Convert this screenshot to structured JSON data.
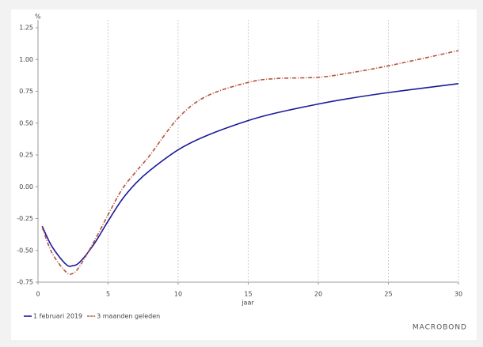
{
  "chart_data": {
    "type": "line",
    "y_label": "%",
    "x_label": "jaar",
    "watermark": "MACROBOND",
    "x": [
      0.3,
      1,
      2,
      2.5,
      3,
      4,
      5,
      6,
      7,
      8,
      10,
      12,
      15,
      17,
      20,
      22,
      25,
      30
    ],
    "series": [
      {
        "name": "1 februari 2019",
        "color": "#1a1a9c",
        "dashed": false,
        "values": [
          -0.31,
          -0.47,
          -0.61,
          -0.62,
          -0.59,
          -0.45,
          -0.27,
          -0.1,
          0.03,
          0.13,
          0.29,
          0.4,
          0.52,
          0.58,
          0.65,
          0.69,
          0.74,
          0.81
        ]
      },
      {
        "name": "3 maanden geleden",
        "color": "#b5533c",
        "dashed": true,
        "values": [
          -0.32,
          -0.52,
          -0.67,
          -0.68,
          -0.62,
          -0.43,
          -0.22,
          -0.02,
          0.12,
          0.25,
          0.54,
          0.71,
          0.82,
          0.85,
          0.86,
          0.89,
          0.95,
          1.07
        ]
      }
    ],
    "xlim": [
      0,
      30
    ],
    "xticks": [
      0,
      5,
      10,
      15,
      20,
      25,
      30
    ],
    "ylim": [
      -0.75,
      1.25
    ],
    "yticks": [
      1.25,
      {
        "value": 1,
        "label": "1.00"
      },
      0.75,
      {
        "value": 0.5,
        "label": "0.50"
      },
      0.25,
      {
        "value": 0,
        "label": "0.00"
      },
      -0.25,
      {
        "value": -0.5,
        "label": "-0.50"
      },
      -0.75
    ],
    "grid": "x",
    "legend": "bottom-left"
  }
}
